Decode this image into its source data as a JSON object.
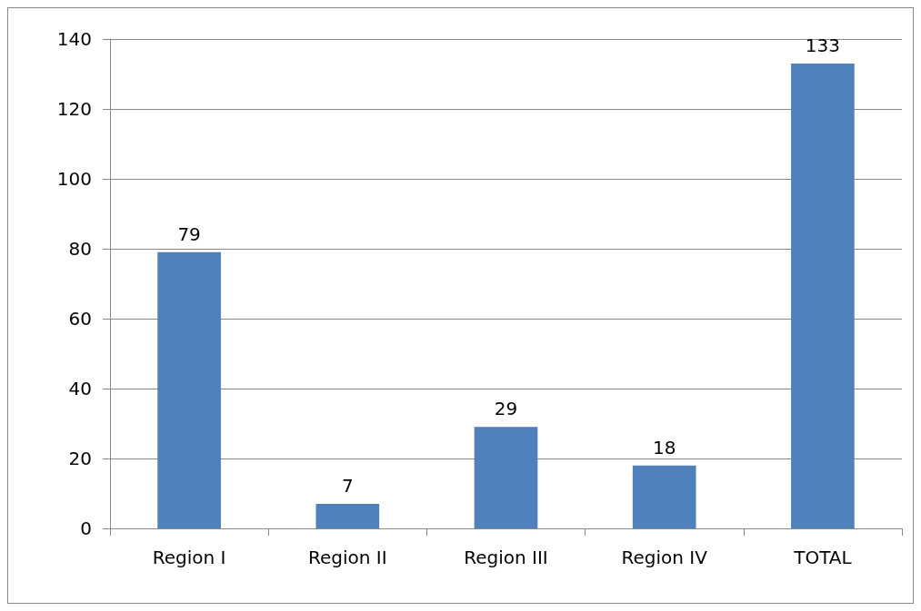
{
  "chart_data": {
    "type": "bar",
    "categories": [
      "Region I",
      "Region II",
      "Region III",
      "Region IV",
      "TOTAL"
    ],
    "values": [
      79,
      7,
      29,
      18,
      133
    ],
    "color": "#4f81bd",
    "ylim": [
      0,
      140
    ],
    "yticks": [
      0,
      20,
      40,
      60,
      80,
      100,
      120,
      140
    ],
    "grid": "y",
    "data_labels": true
  }
}
